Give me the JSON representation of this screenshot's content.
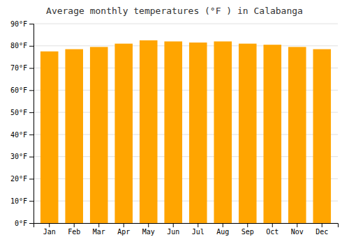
{
  "chart_data": {
    "type": "bar",
    "title": "Average monthly temperatures (°F ) in Calabanga",
    "categories": [
      "Jan",
      "Feb",
      "Mar",
      "Apr",
      "May",
      "Jun",
      "Jul",
      "Aug",
      "Sep",
      "Oct",
      "Nov",
      "Dec"
    ],
    "values": [
      77.5,
      78.5,
      79.5,
      81.0,
      82.5,
      82.0,
      81.5,
      82.0,
      81.0,
      80.5,
      79.5,
      78.5
    ],
    "color": "#FFA500",
    "ylim": [
      0,
      90
    ],
    "yticks": [
      {
        "value": 0,
        "label": "0°F"
      },
      {
        "value": 10,
        "label": "10°F"
      },
      {
        "value": 20,
        "label": "20°F"
      },
      {
        "value": 30,
        "label": "30°F"
      },
      {
        "value": 40,
        "label": "40°F"
      },
      {
        "value": 50,
        "label": "50°F"
      },
      {
        "value": 60,
        "label": "60°F"
      },
      {
        "value": 70,
        "label": "70°F"
      },
      {
        "value": 80,
        "label": "80°F"
      },
      {
        "value": 90,
        "label": "90°F"
      }
    ],
    "grid": true
  }
}
